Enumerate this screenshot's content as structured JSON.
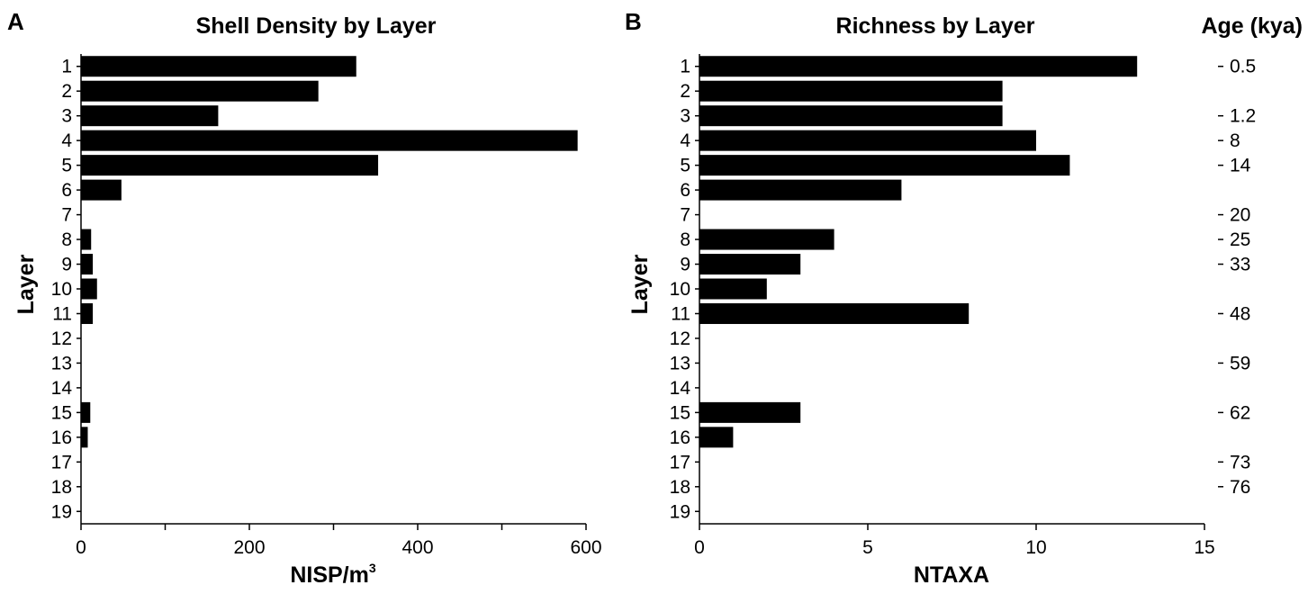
{
  "chart_data": [
    {
      "panel": "A",
      "type": "bar",
      "orientation": "horizontal",
      "title": "Shell Density by Layer",
      "xlabel": "NISP/m",
      "xlabel_sup": "3",
      "ylabel": "Layer",
      "categories": [
        "1",
        "2",
        "3",
        "4",
        "5",
        "6",
        "7",
        "8",
        "9",
        "10",
        "11",
        "12",
        "13",
        "14",
        "15",
        "16",
        "17",
        "18",
        "19"
      ],
      "values": [
        327,
        282,
        163,
        590,
        353,
        48,
        0,
        12,
        14,
        19,
        14,
        0,
        0,
        0,
        11,
        8,
        0,
        0,
        0
      ],
      "xlim": [
        0,
        600
      ],
      "xticks": [
        0,
        100,
        200,
        300,
        400,
        500,
        600
      ],
      "xtick_labels": [
        "0",
        "",
        "200",
        "",
        "400",
        "",
        "600"
      ]
    },
    {
      "panel": "B",
      "type": "bar",
      "orientation": "horizontal",
      "title": "Richness by Layer",
      "xlabel": "NTAXA",
      "ylabel": "Layer",
      "categories": [
        "1",
        "2",
        "3",
        "4",
        "5",
        "6",
        "7",
        "8",
        "9",
        "10",
        "11",
        "12",
        "13",
        "14",
        "15",
        "16",
        "17",
        "18",
        "19"
      ],
      "values": [
        13,
        9,
        9,
        10,
        11,
        6,
        0,
        4,
        3,
        2,
        8,
        0,
        0,
        0,
        3,
        1,
        0,
        0,
        0
      ],
      "xlim": [
        0,
        15
      ],
      "xticks": [
        0,
        5,
        10,
        15
      ],
      "xtick_labels": [
        "0",
        "5",
        "10",
        "15"
      ],
      "secondary_axis": {
        "label": "Age (kya)",
        "entries": [
          {
            "layer": 1,
            "age": "0.5"
          },
          {
            "layer": 3,
            "age": "1.2"
          },
          {
            "layer": 4,
            "age": "8"
          },
          {
            "layer": 5,
            "age": "14"
          },
          {
            "layer": 7,
            "age": "20"
          },
          {
            "layer": 8,
            "age": "25"
          },
          {
            "layer": 9,
            "age": "33"
          },
          {
            "layer": 11,
            "age": "48"
          },
          {
            "layer": 13,
            "age": "59"
          },
          {
            "layer": 15,
            "age": "62"
          },
          {
            "layer": 17,
            "age": "73"
          },
          {
            "layer": 18,
            "age": "76"
          }
        ]
      }
    }
  ]
}
